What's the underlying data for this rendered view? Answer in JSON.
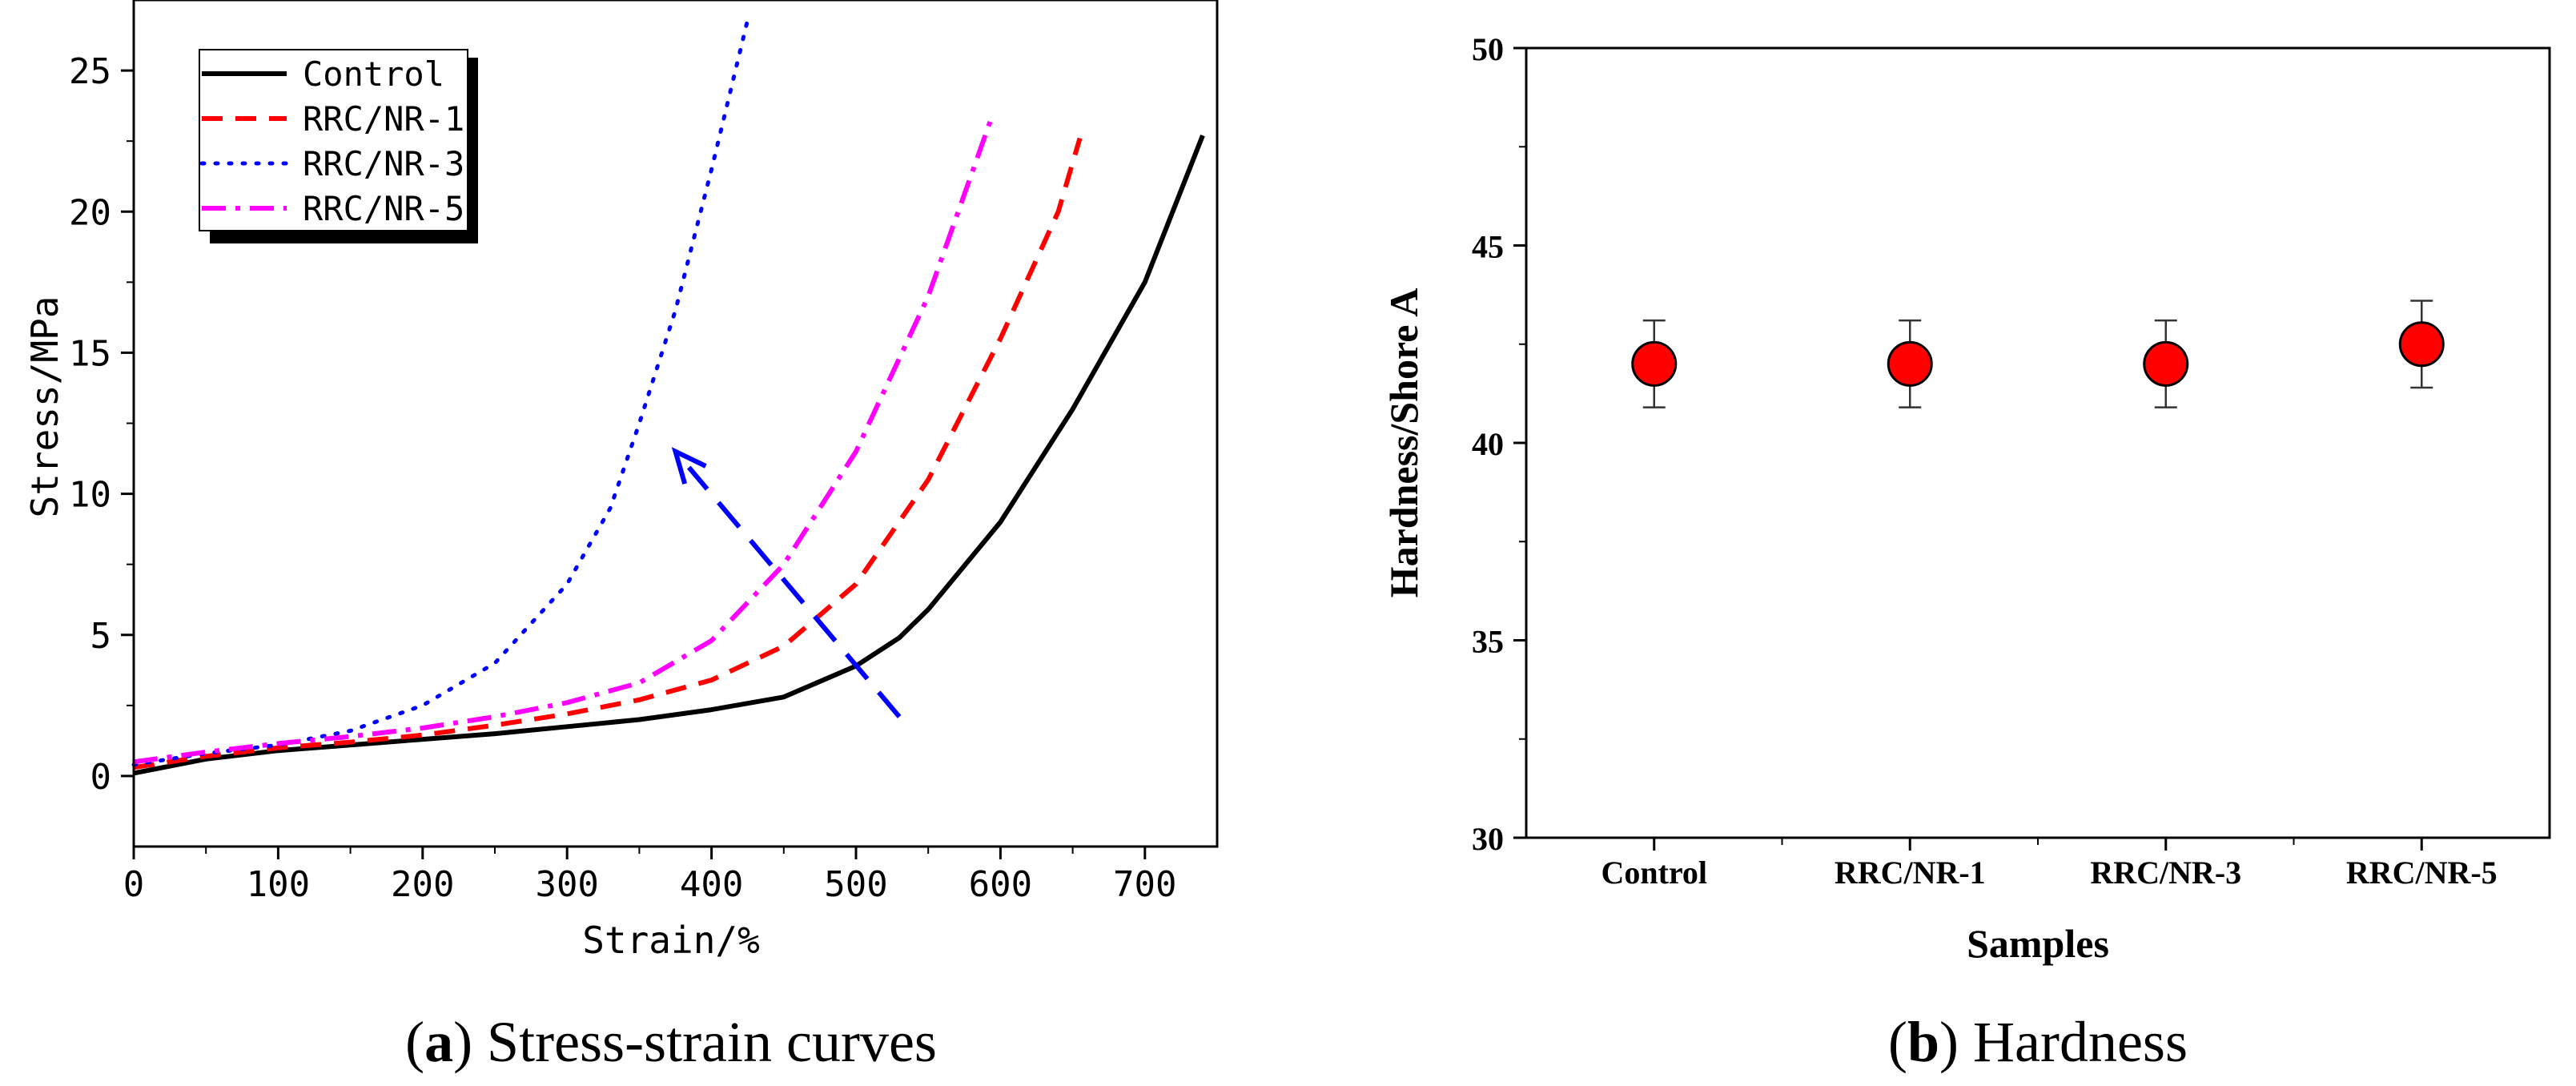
{
  "chart_data": [
    {
      "id": "a",
      "type": "line",
      "title": "",
      "xlabel": "Strain/%",
      "ylabel": "Stress/MPa",
      "xlim": [
        0,
        750
      ],
      "ylim": [
        -2.5,
        27.5
      ],
      "xticks": [
        "0",
        "100",
        "200",
        "300",
        "400",
        "500",
        "600",
        "700"
      ],
      "xtick_values": [
        0,
        100,
        200,
        300,
        400,
        500,
        600,
        700
      ],
      "yticks": [
        "0",
        "5",
        "10",
        "15",
        "20",
        "25"
      ],
      "ytick_values": [
        0,
        5,
        10,
        15,
        20,
        25
      ],
      "legend": {
        "placement": "top-left",
        "entries": [
          "Control",
          "RRC/NR-1",
          "RRC/NR-3",
          "RRC/NR-5"
        ]
      },
      "series": [
        {
          "name": "Control",
          "color": "#000000",
          "style": "solid",
          "points": [
            [
              0,
              0.1
            ],
            [
              50,
              0.6
            ],
            [
              100,
              0.9
            ],
            [
              150,
              1.1
            ],
            [
              200,
              1.3
            ],
            [
              250,
              1.5
            ],
            [
              300,
              1.75
            ],
            [
              350,
              2.0
            ],
            [
              400,
              2.35
            ],
            [
              450,
              2.8
            ],
            [
              500,
              3.9
            ],
            [
              530,
              4.9
            ],
            [
              550,
              5.9
            ],
            [
              600,
              9.0
            ],
            [
              650,
              13.0
            ],
            [
              700,
              17.5
            ],
            [
              740,
              22.7
            ]
          ]
        },
        {
          "name": "RRC/NR-1",
          "color": "#ff0000",
          "style": "dashed",
          "points": [
            [
              0,
              0.3
            ],
            [
              50,
              0.7
            ],
            [
              100,
              1.0
            ],
            [
              150,
              1.2
            ],
            [
              200,
              1.45
            ],
            [
              250,
              1.8
            ],
            [
              300,
              2.2
            ],
            [
              350,
              2.7
            ],
            [
              400,
              3.4
            ],
            [
              450,
              4.6
            ],
            [
              500,
              6.8
            ],
            [
              550,
              10.5
            ],
            [
              600,
              15.5
            ],
            [
              640,
              20.0
            ],
            [
              655,
              22.6
            ]
          ]
        },
        {
          "name": "RRC/NR-3",
          "color": "#0000ff",
          "style": "dotted",
          "points": [
            [
              0,
              0.4
            ],
            [
              50,
              0.8
            ],
            [
              100,
              1.1
            ],
            [
              150,
              1.6
            ],
            [
              200,
              2.5
            ],
            [
              250,
              4.0
            ],
            [
              300,
              6.8
            ],
            [
              330,
              9.5
            ],
            [
              350,
              12.5
            ],
            [
              375,
              16.5
            ],
            [
              400,
              21.5
            ],
            [
              425,
              26.8
            ]
          ]
        },
        {
          "name": "RRC/NR-5",
          "color": "#ff00ff",
          "style": "dashdot",
          "points": [
            [
              0,
              0.5
            ],
            [
              50,
              0.85
            ],
            [
              100,
              1.15
            ],
            [
              150,
              1.4
            ],
            [
              200,
              1.7
            ],
            [
              250,
              2.1
            ],
            [
              300,
              2.6
            ],
            [
              350,
              3.3
            ],
            [
              400,
              4.8
            ],
            [
              450,
              7.5
            ],
            [
              500,
              11.5
            ],
            [
              550,
              17.0
            ],
            [
              595,
              23.5
            ]
          ]
        }
      ],
      "annotations": [
        {
          "type": "arrow",
          "color": "#0000ff",
          "style": "dashed",
          "from": [
            530,
            2.1
          ],
          "to": [
            375,
            11.5
          ]
        }
      ],
      "caption_letter": "a",
      "caption_text": " Stress-strain curves"
    },
    {
      "id": "b",
      "type": "scatter",
      "title": "",
      "xlabel": "Samples",
      "ylabel": "Hardness/Shore A",
      "ylim": [
        30,
        50
      ],
      "yticks": [
        "30",
        "35",
        "40",
        "45",
        "50"
      ],
      "ytick_values": [
        30,
        35,
        40,
        45,
        50
      ],
      "categories": [
        "Control",
        "RRC/NR-1",
        "RRC/NR-3",
        "RRC/NR-5"
      ],
      "values": [
        42.0,
        42.0,
        42.0,
        42.5
      ],
      "errors": [
        1.1,
        1.1,
        1.1,
        1.1
      ],
      "marker_color": "#ff0000",
      "caption_letter": "b",
      "caption_text": " Hardness"
    }
  ]
}
